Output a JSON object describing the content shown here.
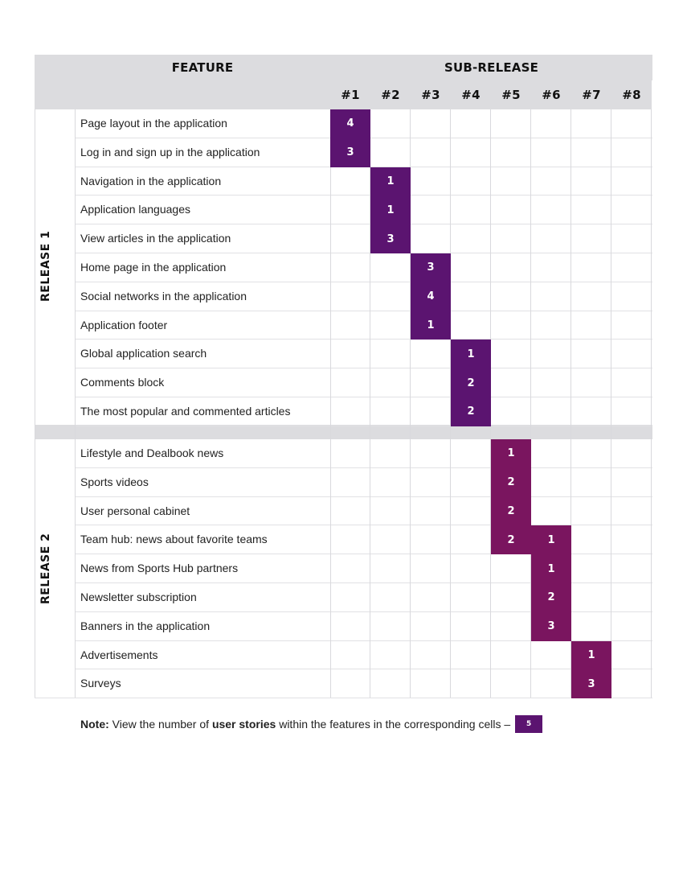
{
  "header": {
    "feature_label": "FEATURE",
    "subrelease_label": "SUB-RELEASE",
    "subreleases": [
      "#1",
      "#2",
      "#3",
      "#4",
      "#5",
      "#6",
      "#7",
      "#8"
    ]
  },
  "colors": {
    "header_bg": "#dcdcdf",
    "mark_release1": "#5b1470",
    "mark_release2": "#7a155f"
  },
  "releases": [
    {
      "label": "RELEASE 1",
      "rows": [
        {
          "feature": "Page layout in the application",
          "sub": 1,
          "stories": "4"
        },
        {
          "feature": "Log in and sign up in the application",
          "sub": 1,
          "stories": "3"
        },
        {
          "feature": "Navigation in the application",
          "sub": 2,
          "stories": "1"
        },
        {
          "feature": "Application languages",
          "sub": 2,
          "stories": "1"
        },
        {
          "feature": "View articles in the application",
          "sub": 2,
          "stories": "3"
        },
        {
          "feature": "Home page in the application",
          "sub": 3,
          "stories": "3"
        },
        {
          "feature": "Social networks in the application",
          "sub": 3,
          "stories": "4"
        },
        {
          "feature": "Application footer",
          "sub": 3,
          "stories": "1"
        },
        {
          "feature": "Global application search",
          "sub": 4,
          "stories": "1"
        },
        {
          "feature": "Comments block",
          "sub": 4,
          "stories": "2"
        },
        {
          "feature": "The most popular and commented articles",
          "sub": 4,
          "stories": "2"
        }
      ]
    },
    {
      "label": "RELEASE 2",
      "rows": [
        {
          "feature": "Lifestyle and Dealbook news",
          "sub": 5,
          "stories": "1"
        },
        {
          "feature": "Sports videos",
          "sub": 5,
          "stories": "2"
        },
        {
          "feature": "User personal cabinet",
          "sub": 5,
          "stories": "2"
        },
        {
          "feature": "Team hub: news about favorite teams",
          "sub": 5,
          "stories": "2",
          "sub2": 6,
          "stories2": "1"
        },
        {
          "feature": "News from Sports Hub partners",
          "sub": 6,
          "stories": "1"
        },
        {
          "feature": "Newsletter subscription",
          "sub": 6,
          "stories": "2"
        },
        {
          "feature": "Banners in the application",
          "sub": 6,
          "stories": "3"
        },
        {
          "feature": "Advertisements",
          "sub": 7,
          "stories": "1"
        },
        {
          "feature": "Surveys",
          "sub": 7,
          "stories": "3"
        }
      ]
    }
  ],
  "note": {
    "prefix": "Note:",
    "text_before": " View the number of ",
    "emphasis": "user stories",
    "text_after": " within the features in the corresponding cells –",
    "swatch_value": "5"
  }
}
